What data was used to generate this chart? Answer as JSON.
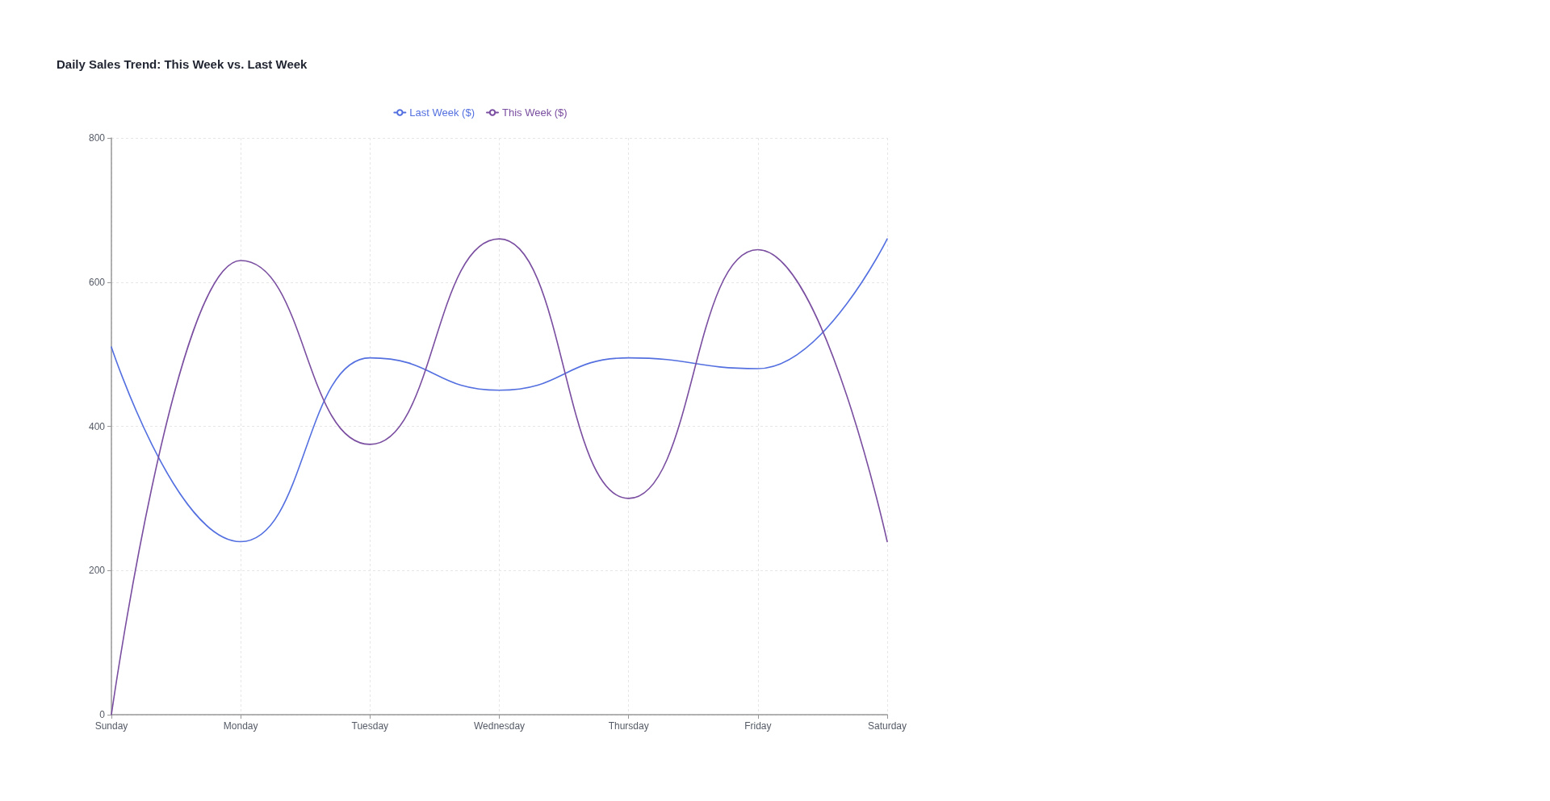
{
  "chart_data": {
    "type": "line",
    "title": "Daily Sales Trend: This Week vs. Last Week",
    "categories": [
      "Sunday",
      "Monday",
      "Tuesday",
      "Wednesday",
      "Thursday",
      "Friday",
      "Saturday"
    ],
    "series": [
      {
        "name": "Last Week ($)",
        "color": "#5470e0",
        "values": [
          510,
          240,
          495,
          450,
          495,
          480,
          660
        ]
      },
      {
        "name": "This Week ($)",
        "color": "#7a4ea0",
        "values": [
          0,
          630,
          375,
          660,
          300,
          645,
          240
        ]
      }
    ],
    "ylim": [
      0,
      800
    ],
    "yticks": [
      0,
      200,
      400,
      600,
      800
    ],
    "grid": true,
    "legend": "top"
  }
}
